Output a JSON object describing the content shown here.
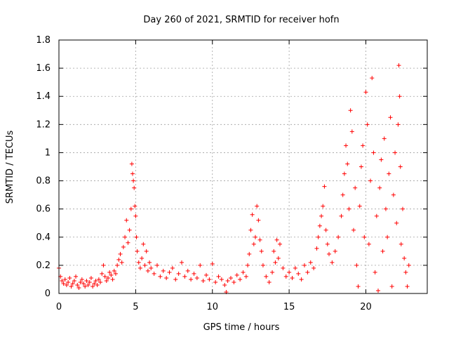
{
  "chart_data": {
    "type": "scatter",
    "title": "Day 260 of 2021, SRMTID for receiver hofn",
    "xlabel": "GPS time / hours",
    "ylabel": "SRMTID / TECUs",
    "xlim": [
      0,
      24
    ],
    "ylim": [
      0,
      1.8
    ],
    "x_ticks": [
      0,
      5,
      10,
      15,
      20
    ],
    "x_tick_labels": [
      "0",
      "5",
      "10",
      "15",
      "20"
    ],
    "y_ticks": [
      0,
      0.2,
      0.4,
      0.6,
      0.8,
      1.0,
      1.2,
      1.4,
      1.6,
      1.8
    ],
    "y_tick_labels": [
      "0",
      "0.2",
      "0.4",
      "0.6",
      "0.8",
      "1",
      "1.2",
      "1.4",
      "1.6",
      "1.8"
    ],
    "grid": true,
    "marker": "+",
    "color": "#ff0000",
    "series": [
      {
        "name": "SRMTID",
        "points": [
          [
            0.0,
            0.18
          ],
          [
            0.1,
            0.12
          ],
          [
            0.2,
            0.09
          ],
          [
            0.3,
            0.07
          ],
          [
            0.4,
            0.1
          ],
          [
            0.5,
            0.06
          ],
          [
            0.6,
            0.08
          ],
          [
            0.7,
            0.11
          ],
          [
            0.8,
            0.05
          ],
          [
            0.9,
            0.07
          ],
          [
            1.0,
            0.09
          ],
          [
            1.1,
            0.12
          ],
          [
            1.2,
            0.06
          ],
          [
            1.3,
            0.04
          ],
          [
            1.4,
            0.08
          ],
          [
            1.5,
            0.1
          ],
          [
            1.6,
            0.07
          ],
          [
            1.7,
            0.05
          ],
          [
            1.8,
            0.09
          ],
          [
            1.9,
            0.06
          ],
          [
            2.0,
            0.08
          ],
          [
            2.1,
            0.11
          ],
          [
            2.2,
            0.05
          ],
          [
            2.3,
            0.07
          ],
          [
            2.4,
            0.09
          ],
          [
            2.5,
            0.06
          ],
          [
            2.6,
            0.1
          ],
          [
            2.7,
            0.08
          ],
          [
            2.8,
            0.14
          ],
          [
            2.9,
            0.2
          ],
          [
            3.0,
            0.12
          ],
          [
            3.1,
            0.09
          ],
          [
            3.2,
            0.11
          ],
          [
            3.3,
            0.15
          ],
          [
            3.4,
            0.13
          ],
          [
            3.5,
            0.1
          ],
          [
            3.6,
            0.16
          ],
          [
            3.7,
            0.14
          ],
          [
            3.8,
            0.2
          ],
          [
            3.9,
            0.24
          ],
          [
            4.0,
            0.28
          ],
          [
            4.1,
            0.22
          ],
          [
            4.2,
            0.33
          ],
          [
            4.3,
            0.4
          ],
          [
            4.4,
            0.52
          ],
          [
            4.5,
            0.36
          ],
          [
            4.6,
            0.45
          ],
          [
            4.7,
            0.6
          ],
          [
            4.75,
            0.92
          ],
          [
            4.8,
            0.85
          ],
          [
            4.85,
            0.8
          ],
          [
            4.9,
            0.75
          ],
          [
            4.95,
            0.62
          ],
          [
            5.0,
            0.55
          ],
          [
            5.05,
            0.4
          ],
          [
            5.1,
            0.3
          ],
          [
            5.2,
            0.22
          ],
          [
            5.3,
            0.18
          ],
          [
            5.4,
            0.25
          ],
          [
            5.5,
            0.35
          ],
          [
            5.6,
            0.2
          ],
          [
            5.7,
            0.3
          ],
          [
            5.8,
            0.16
          ],
          [
            5.9,
            0.22
          ],
          [
            6.0,
            0.18
          ],
          [
            6.2,
            0.14
          ],
          [
            6.4,
            0.2
          ],
          [
            6.6,
            0.12
          ],
          [
            6.8,
            0.16
          ],
          [
            7.0,
            0.11
          ],
          [
            7.2,
            0.15
          ],
          [
            7.4,
            0.18
          ],
          [
            7.6,
            0.1
          ],
          [
            7.8,
            0.14
          ],
          [
            8.0,
            0.22
          ],
          [
            8.2,
            0.12
          ],
          [
            8.4,
            0.16
          ],
          [
            8.6,
            0.1
          ],
          [
            8.8,
            0.14
          ],
          [
            9.0,
            0.11
          ],
          [
            9.2,
            0.2
          ],
          [
            9.4,
            0.09
          ],
          [
            9.6,
            0.13
          ],
          [
            9.8,
            0.1
          ],
          [
            10.0,
            0.21
          ],
          [
            10.2,
            0.08
          ],
          [
            10.4,
            0.12
          ],
          [
            10.6,
            0.1
          ],
          [
            10.8,
            0.06
          ],
          [
            10.9,
            0.01
          ],
          [
            11.0,
            0.09
          ],
          [
            11.2,
            0.11
          ],
          [
            11.4,
            0.08
          ],
          [
            11.6,
            0.13
          ],
          [
            11.8,
            0.1
          ],
          [
            12.0,
            0.15
          ],
          [
            12.2,
            0.12
          ],
          [
            12.3,
            0.2
          ],
          [
            12.4,
            0.28
          ],
          [
            12.5,
            0.45
          ],
          [
            12.6,
            0.56
          ],
          [
            12.7,
            0.35
          ],
          [
            12.8,
            0.4
          ],
          [
            12.9,
            0.62
          ],
          [
            13.0,
            0.52
          ],
          [
            13.1,
            0.38
          ],
          [
            13.2,
            0.3
          ],
          [
            13.3,
            0.2
          ],
          [
            13.5,
            0.12
          ],
          [
            13.7,
            0.08
          ],
          [
            13.9,
            0.15
          ],
          [
            14.0,
            0.3
          ],
          [
            14.1,
            0.22
          ],
          [
            14.2,
            0.38
          ],
          [
            14.3,
            0.25
          ],
          [
            14.4,
            0.35
          ],
          [
            14.6,
            0.18
          ],
          [
            14.8,
            0.12
          ],
          [
            15.0,
            0.15
          ],
          [
            15.2,
            0.11
          ],
          [
            15.4,
            0.18
          ],
          [
            15.6,
            0.14
          ],
          [
            15.8,
            0.1
          ],
          [
            16.0,
            0.2
          ],
          [
            16.2,
            0.15
          ],
          [
            16.4,
            0.22
          ],
          [
            16.6,
            0.18
          ],
          [
            16.8,
            0.32
          ],
          [
            16.9,
            0.4
          ],
          [
            17.0,
            0.48
          ],
          [
            17.1,
            0.55
          ],
          [
            17.2,
            0.62
          ],
          [
            17.3,
            0.76
          ],
          [
            17.4,
            0.45
          ],
          [
            17.5,
            0.35
          ],
          [
            17.6,
            0.28
          ],
          [
            17.8,
            0.22
          ],
          [
            18.0,
            0.3
          ],
          [
            18.2,
            0.4
          ],
          [
            18.4,
            0.55
          ],
          [
            18.5,
            0.7
          ],
          [
            18.6,
            0.85
          ],
          [
            18.7,
            1.05
          ],
          [
            18.8,
            0.92
          ],
          [
            18.9,
            0.6
          ],
          [
            19.0,
            1.3
          ],
          [
            19.1,
            1.15
          ],
          [
            19.2,
            0.45
          ],
          [
            19.3,
            0.75
          ],
          [
            19.4,
            0.2
          ],
          [
            19.5,
            0.05
          ],
          [
            19.6,
            0.62
          ],
          [
            19.7,
            0.9
          ],
          [
            19.8,
            1.05
          ],
          [
            19.9,
            0.4
          ],
          [
            20.0,
            1.43
          ],
          [
            20.1,
            1.2
          ],
          [
            20.2,
            0.35
          ],
          [
            20.3,
            0.8
          ],
          [
            20.4,
            1.53
          ],
          [
            20.5,
            1.0
          ],
          [
            20.6,
            0.15
          ],
          [
            20.7,
            0.55
          ],
          [
            20.8,
            0.02
          ],
          [
            20.9,
            0.75
          ],
          [
            21.0,
            0.95
          ],
          [
            21.1,
            0.3
          ],
          [
            21.2,
            1.1
          ],
          [
            21.3,
            0.6
          ],
          [
            21.4,
            0.4
          ],
          [
            21.5,
            0.85
          ],
          [
            21.6,
            1.25
          ],
          [
            21.7,
            0.05
          ],
          [
            21.8,
            0.7
          ],
          [
            21.9,
            1.0
          ],
          [
            22.0,
            0.5
          ],
          [
            22.1,
            1.2
          ],
          [
            22.15,
            1.62
          ],
          [
            22.2,
            1.4
          ],
          [
            22.25,
            0.9
          ],
          [
            22.3,
            0.35
          ],
          [
            22.4,
            0.6
          ],
          [
            22.5,
            0.25
          ],
          [
            22.6,
            0.15
          ],
          [
            22.7,
            0.05
          ],
          [
            22.8,
            0.2
          ]
        ]
      }
    ]
  }
}
